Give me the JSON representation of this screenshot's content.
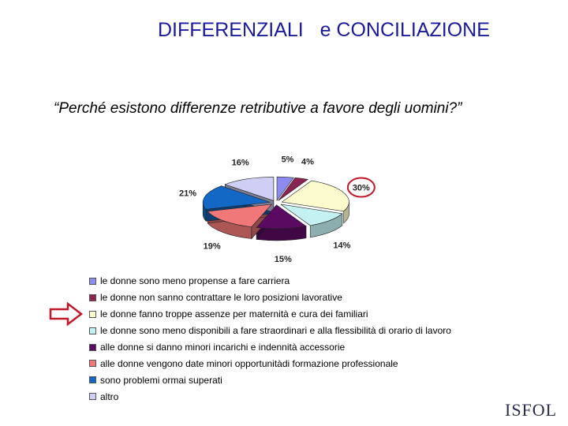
{
  "title": "DIFFERENZIALI   e CONCILIAZIONE",
  "question": "“Perché esistono differenze retributive a favore degli uomini?”",
  "logo": "ISFOL",
  "highlight_color": "#c0182a",
  "chart_data": {
    "type": "pie",
    "title": "",
    "highlighted_label": "30%",
    "slices": [
      {
        "label": "le donne sono meno propense a fare carriera",
        "value": 5,
        "value_label": "5%",
        "color": "#8c8cf0"
      },
      {
        "label": "le donne non sanno contrattare le loro posizioni lavorative",
        "value": 4,
        "value_label": "4%",
        "color": "#8a2450"
      },
      {
        "label": "le donne fanno troppe assenze per maternità e cura dei familiari",
        "value": 30,
        "value_label": "30%",
        "color": "#fbfbce"
      },
      {
        "label": "le donne sono meno disponibili a fare straordinari e alla flessibilità di orario di lavoro",
        "value": 14,
        "value_label": "14%",
        "color": "#c4f2f2"
      },
      {
        "label": "alle donne si danno minori incarichi e indennità accessorie",
        "value": 15,
        "value_label": "15%",
        "color": "#5a0a60"
      },
      {
        "label": "alle donne vengono date minori opportunitàdi formazione professionale",
        "value": 19,
        "value_label": "19%",
        "color": "#f07878"
      },
      {
        "label": "sono problemi ormai superati",
        "value": 21,
        "value_label": "21%",
        "color": "#1268c4"
      },
      {
        "label": "altro",
        "value": 16,
        "value_label": "16%",
        "color": "#cfcff6"
      }
    ]
  }
}
